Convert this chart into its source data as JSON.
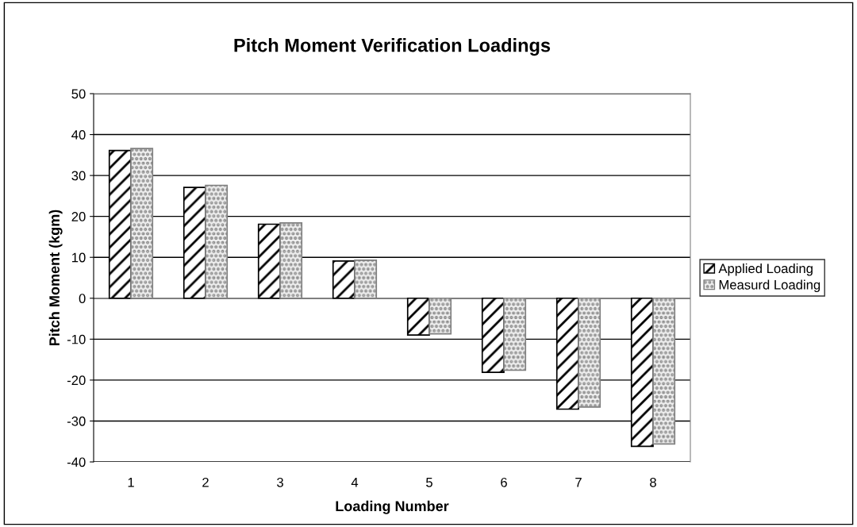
{
  "chart_data": {
    "type": "bar",
    "title": "Pitch Moment Verification Loadings",
    "xlabel": "Loading Number",
    "ylabel": "Pitch Moment (kgm)",
    "categories": [
      "1",
      "2",
      "3",
      "4",
      "5",
      "6",
      "7",
      "8"
    ],
    "series": [
      {
        "name": "Applied Loading",
        "color": "#000000",
        "values": [
          36.1,
          27.1,
          18.1,
          9.1,
          -9.0,
          -18.1,
          -27.1,
          -36.2
        ]
      },
      {
        "name": "Measurd Loading",
        "color": "#808080",
        "values": [
          36.6,
          27.6,
          18.4,
          9.3,
          -8.7,
          -17.6,
          -26.6,
          -35.6
        ]
      }
    ],
    "ylim": [
      -40,
      50
    ],
    "yticks": [
      -40,
      -30,
      -20,
      -10,
      0,
      10,
      20,
      30,
      40,
      50
    ],
    "grid": "y",
    "legend": "right"
  }
}
